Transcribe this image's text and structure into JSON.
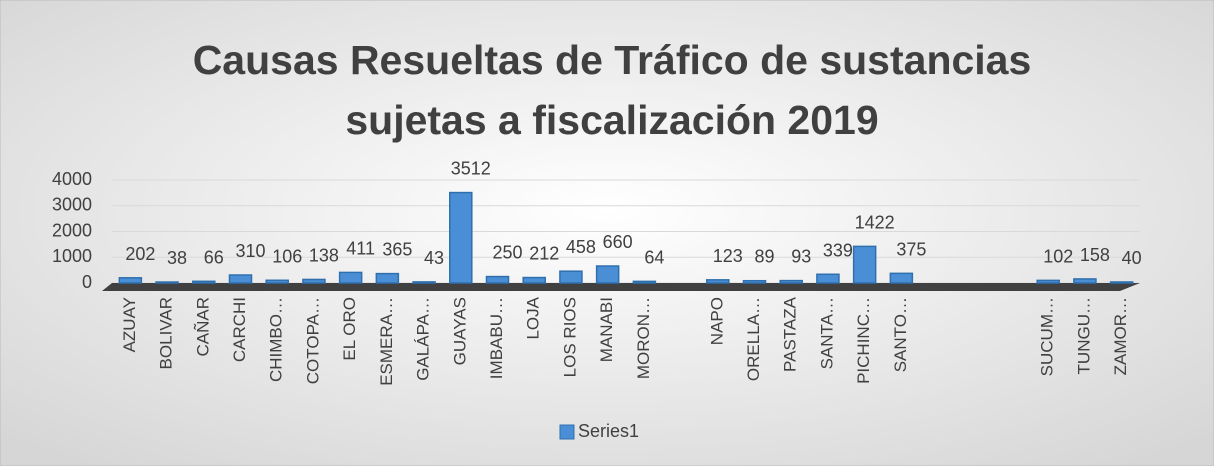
{
  "chart_data": {
    "type": "bar",
    "title": [
      "Causas  Resueltas  de Tráfico de sustancias",
      "sujetas a fiscalización 2019"
    ],
    "categories": [
      "AZUAY",
      "BOLIVAR",
      "CAÑAR",
      "CARCHI",
      "CHIMBO…",
      "COTOPA…",
      "EL ORO",
      "ESMERA…",
      "GALÁPA…",
      "GUAYAS",
      "IMBABU…",
      "LOJA",
      "LOS RIOS",
      "MANABI",
      "MORON…",
      null,
      "NAPO",
      "ORELLA…",
      "PASTAZA",
      "SANTA…",
      "PICHINC…",
      "SANTO…",
      null,
      null,
      null,
      "SUCUM…",
      "TUNGU…",
      "ZAMOR…"
    ],
    "series": [
      {
        "name": "Series1",
        "color": "#4a8fd6",
        "values": [
          202,
          38,
          66,
          310,
          106,
          138,
          411,
          365,
          43,
          3512,
          250,
          212,
          458,
          660,
          64,
          null,
          123,
          89,
          93,
          339,
          1422,
          375,
          null,
          null,
          null,
          102,
          158,
          40
        ]
      }
    ],
    "ylim": [
      0,
      4000
    ],
    "yticks": [
      0,
      1000,
      2000,
      3000,
      4000
    ],
    "grid": true,
    "legend": "bottom"
  }
}
